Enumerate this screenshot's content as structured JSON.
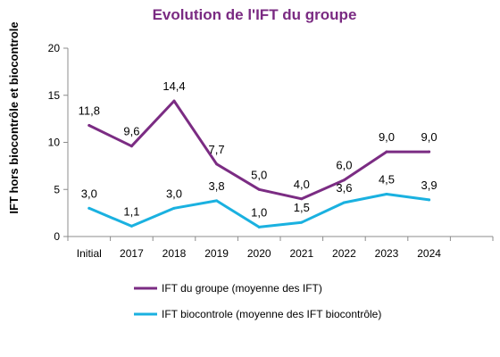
{
  "chart_data": {
    "type": "line",
    "title": "Evolution de l'IFT du groupe",
    "ylabel": "IFT  hors biocontrôle et biocontrole",
    "xlabel": "",
    "categories": [
      "Initial",
      "2017",
      "2018",
      "2019",
      "2020",
      "2021",
      "2022",
      "2023",
      "2024"
    ],
    "ylim": [
      0,
      20
    ],
    "yticks": [
      0,
      5,
      10,
      15,
      20
    ],
    "grid": false,
    "legend_position": "bottom",
    "series": [
      {
        "name": "IFT du groupe (moyenne des IFT)",
        "color": "#7b2c83",
        "values": [
          11.8,
          9.6,
          14.4,
          7.7,
          5.0,
          4.0,
          6.0,
          9.0,
          9.0
        ],
        "labels": [
          "11,8",
          "9,6",
          "14,4",
          "7,7",
          "5,0",
          "4,0",
          "6,0",
          "9,0",
          "9,0"
        ]
      },
      {
        "name": "IFT biocontrole (moyenne des IFT biocontrôle)",
        "color": "#1ab1e0",
        "values": [
          3.0,
          1.1,
          3.0,
          3.8,
          1.0,
          1.5,
          3.6,
          4.5,
          3.9
        ],
        "labels": [
          "3,0",
          "1,1",
          "3,0",
          "3,8",
          "1,0",
          "1,5",
          "3,6",
          "4,5",
          "3,9"
        ]
      }
    ]
  }
}
